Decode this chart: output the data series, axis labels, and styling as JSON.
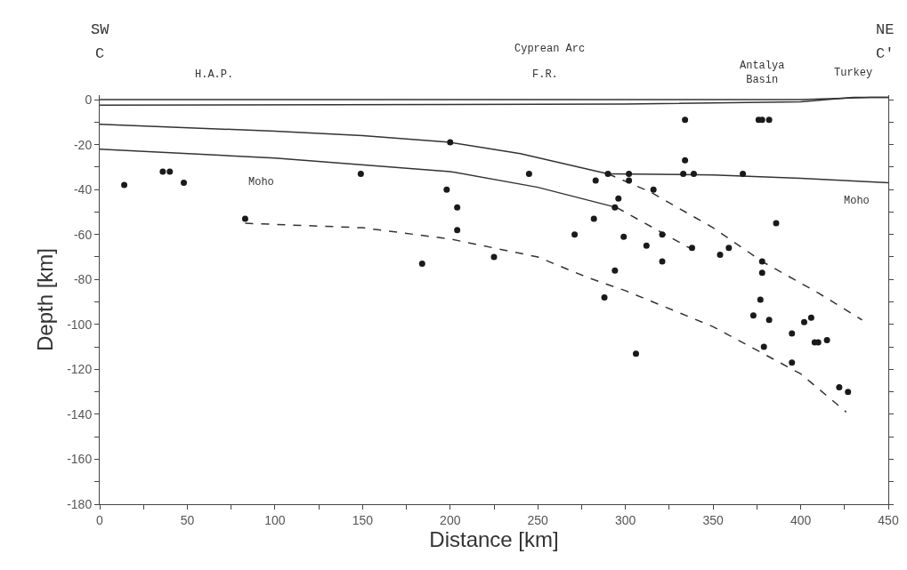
{
  "chart_data": {
    "type": "scatter",
    "xlabel": "Distance [km]",
    "ylabel": "Depth [km]",
    "xlim": [
      0,
      450
    ],
    "xticks": [
      0,
      {
        "value": 25,
        "label": null
      },
      50,
      {
        "value": 75,
        "label": null
      },
      100,
      {
        "value": 125,
        "label": null
      },
      150,
      {
        "value": 175,
        "label": null
      },
      200,
      {
        "value": 225,
        "label": null
      },
      250,
      {
        "value": 275,
        "label": null
      },
      300,
      {
        "value": 325,
        "label": null
      },
      350,
      {
        "value": 375,
        "label": null
      },
      400,
      {
        "value": 425,
        "label": null
      },
      450
    ],
    "ylim": [
      -180,
      2
    ],
    "yticks": [
      -180,
      {
        "value": -170,
        "label": null
      },
      -160,
      {
        "value": -150,
        "label": null
      },
      -140,
      {
        "value": -130,
        "label": null
      },
      -120,
      {
        "value": -110,
        "label": null
      },
      -100,
      {
        "value": -90,
        "label": null
      },
      -80,
      {
        "value": -70,
        "label": null
      },
      -60,
      {
        "value": -50,
        "label": null
      },
      -40,
      {
        "value": -30,
        "label": null
      },
      -20,
      {
        "value": -10,
        "label": null
      },
      0
    ],
    "grid": false,
    "series": [
      {
        "marker": "circle",
        "color": "#1a1a1a",
        "x": [
          14,
          36,
          40,
          48,
          83,
          149,
          184,
          200,
          198,
          204,
          204,
          225,
          245,
          271,
          283,
          282,
          290,
          294,
          296,
          294,
          288,
          299,
          302,
          302,
          306,
          312,
          316,
          321,
          321,
          333,
          334,
          334,
          339,
          338,
          354,
          359,
          367,
          376,
          378,
          382,
          386,
          378,
          378,
          377,
          373,
          382,
          379,
          395,
          395,
          402,
          406,
          408,
          410,
          415,
          422,
          427
        ],
        "values": [
          -38,
          -32,
          -32,
          -37,
          -53,
          -33,
          -73,
          -19,
          -40,
          -48,
          -58,
          -70,
          -33,
          -60,
          -36,
          -53,
          -33,
          -48,
          -44,
          -76,
          -88,
          -61,
          -33,
          -36,
          -113,
          -65,
          -40,
          -72,
          -60,
          -33,
          -27,
          -9,
          -33,
          -66,
          -69,
          -66,
          -33,
          -9,
          -9,
          -9,
          -55,
          -72,
          -77,
          -89,
          -96,
          -98,
          -110,
          -104,
          -117,
          -99,
          -97,
          -108,
          -108,
          -107,
          -128,
          -130
        ]
      },
      {
        "type": "line",
        "line_style": "solid",
        "color": "#333333",
        "x": [
          0,
          400,
          440,
          450
        ],
        "values": [
          0,
          0,
          1,
          1
        ]
      },
      {
        "type": "line",
        "line_style": "solid",
        "color": "#333333",
        "x": [
          0,
          300,
          400,
          430,
          450
        ],
        "values": [
          -2.5,
          -2,
          -1,
          1,
          1
        ]
      },
      {
        "type": "line",
        "line_style": "solid",
        "color": "#333333",
        "x": [
          0,
          100,
          150,
          200,
          240,
          290
        ],
        "values": [
          -11,
          -14,
          -16,
          -19,
          -24,
          -33
        ]
      },
      {
        "type": "line",
        "line_style": "solid",
        "color": "#333333",
        "x": [
          290,
          350,
          400,
          450
        ],
        "values": [
          -33,
          -33.5,
          -35,
          -37
        ]
      },
      {
        "type": "line",
        "line_style": "dashed",
        "color": "#333333",
        "x": [
          290,
          314,
          350,
          378,
          410,
          435
        ],
        "values": [
          -33,
          -41,
          -57,
          -72,
          -86,
          -98
        ]
      },
      {
        "type": "line",
        "line_style": "solid",
        "color": "#333333",
        "x": [
          0,
          100,
          200,
          250,
          295
        ],
        "values": [
          -22,
          -26,
          -32,
          -39,
          -48
        ]
      },
      {
        "type": "line",
        "line_style": "dashed",
        "color": "#333333",
        "x": [
          295,
          325,
          339
        ],
        "values": [
          -48,
          -61,
          -67
        ]
      },
      {
        "type": "line",
        "line_style": "dashed",
        "color": "#333333",
        "x": [
          83,
          150,
          200,
          250,
          278,
          300,
          350,
          400,
          426
        ],
        "values": [
          -55,
          -57,
          -62,
          -70,
          -79,
          -85,
          -101,
          -122,
          -139
        ]
      }
    ],
    "annotations": [
      "Moho",
      "Moho",
      "SW",
      "C",
      "H.A.P.",
      "Cyprean Arc",
      "F.R.",
      "Antalya Basin",
      "Turkey",
      "NE",
      "C'"
    ]
  }
}
